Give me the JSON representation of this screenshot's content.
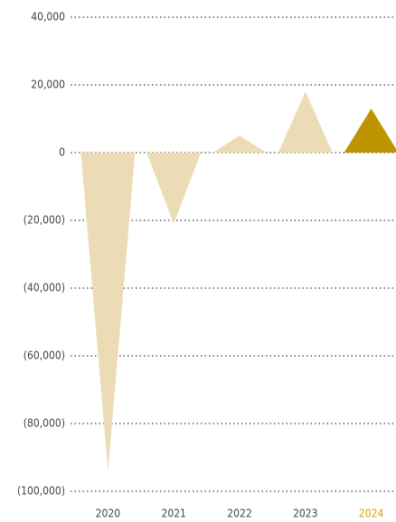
{
  "chart_data": {
    "type": "triangle-bar",
    "categories": [
      "2020",
      "2021",
      "2022",
      "2023",
      "2024"
    ],
    "values": [
      -94000,
      -21000,
      5000,
      18000,
      13000
    ],
    "colors": [
      "#ecdcb6",
      "#ecdcb6",
      "#ecdcb6",
      "#ecdcb6",
      "#bd9500"
    ],
    "label_colors": [
      "#444444",
      "#444444",
      "#444444",
      "#444444",
      "#d4a300"
    ],
    "ylim": [
      -100000,
      40000
    ],
    "yticks": [
      {
        "value": -100000,
        "label": "(100,000)"
      },
      {
        "value": -80000,
        "label": "(80,000)"
      },
      {
        "value": -60000,
        "label": "(60,000)"
      },
      {
        "value": -40000,
        "label": "(40,000)"
      },
      {
        "value": -20000,
        "label": "(20,000)"
      },
      0,
      {
        "value": 20000,
        "label": "20,000"
      },
      {
        "value": 40000,
        "label": "40,000"
      }
    ],
    "grid": true
  }
}
